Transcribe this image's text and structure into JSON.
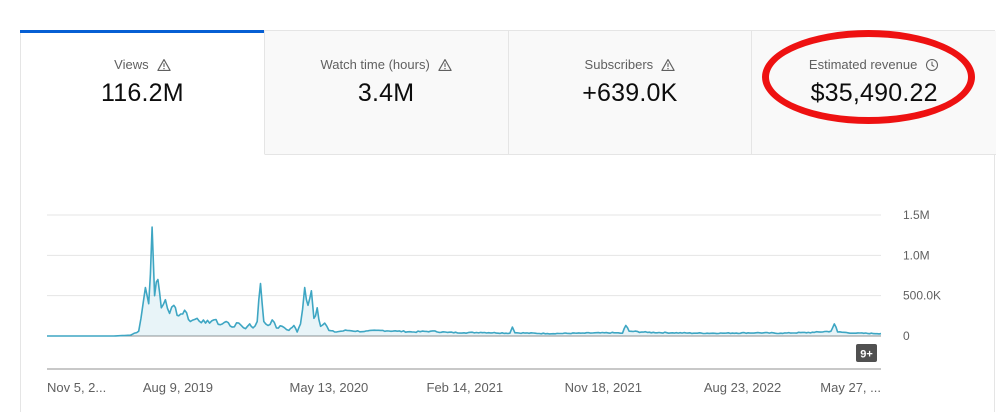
{
  "tabs": [
    {
      "label": "Views",
      "value": "116.2M",
      "icon": "warning-icon",
      "active": true
    },
    {
      "label": "Watch time (hours)",
      "value": "3.4M",
      "icon": "warning-icon",
      "active": false
    },
    {
      "label": "Subscribers",
      "value": "+639.0K",
      "icon": "warning-icon",
      "active": false
    },
    {
      "label": "Estimated revenue",
      "value": "$35,490.22",
      "icon": "clock-icon",
      "active": false
    }
  ],
  "colors": {
    "accent": "#065fd4",
    "series": "#3ea6c3",
    "highlight": "#ee1111"
  },
  "badge": "9+",
  "chart_data": {
    "type": "area",
    "title": "",
    "series_name": "Views",
    "xlabel": "",
    "ylabel": "",
    "ylim": [
      0,
      1500000
    ],
    "y_ticks": [
      {
        "value": 0,
        "label": "0"
      },
      {
        "value": 500000,
        "label": "500.0K"
      },
      {
        "value": 1000000,
        "label": "1.0M"
      },
      {
        "value": 1500000,
        "label": "1.5M"
      }
    ],
    "x_ticks": [
      "Nov 5, 2...",
      "Aug 9, 2019",
      "May 13, 2020",
      "Feb 14, 2021",
      "Nov 18, 2021",
      "Aug 23, 2022",
      "May 27, ..."
    ],
    "x_tick_positions": [
      0,
      0.157,
      0.338,
      0.501,
      0.667,
      0.834,
      1.0
    ],
    "points": [
      [
        0.0,
        0
      ],
      [
        0.08,
        0
      ],
      [
        0.1,
        10000
      ],
      [
        0.11,
        60000
      ],
      [
        0.118,
        600000
      ],
      [
        0.122,
        400000
      ],
      [
        0.126,
        1350000
      ],
      [
        0.129,
        500000
      ],
      [
        0.133,
        700000
      ],
      [
        0.137,
        350000
      ],
      [
        0.142,
        450000
      ],
      [
        0.147,
        280000
      ],
      [
        0.152,
        380000
      ],
      [
        0.158,
        250000
      ],
      [
        0.165,
        320000
      ],
      [
        0.172,
        180000
      ],
      [
        0.18,
        220000
      ],
      [
        0.19,
        160000
      ],
      [
        0.2,
        200000
      ],
      [
        0.208,
        140000
      ],
      [
        0.215,
        180000
      ],
      [
        0.222,
        110000
      ],
      [
        0.23,
        160000
      ],
      [
        0.238,
        90000
      ],
      [
        0.243,
        150000
      ],
      [
        0.247,
        100000
      ],
      [
        0.252,
        180000
      ],
      [
        0.256,
        650000
      ],
      [
        0.26,
        180000
      ],
      [
        0.265,
        130000
      ],
      [
        0.27,
        200000
      ],
      [
        0.275,
        100000
      ],
      [
        0.282,
        120000
      ],
      [
        0.29,
        70000
      ],
      [
        0.296,
        130000
      ],
      [
        0.3,
        50000
      ],
      [
        0.304,
        150000
      ],
      [
        0.309,
        600000
      ],
      [
        0.313,
        380000
      ],
      [
        0.317,
        560000
      ],
      [
        0.32,
        220000
      ],
      [
        0.324,
        350000
      ],
      [
        0.328,
        120000
      ],
      [
        0.333,
        160000
      ],
      [
        0.338,
        70000
      ],
      [
        0.345,
        50000
      ],
      [
        0.36,
        70000
      ],
      [
        0.38,
        55000
      ],
      [
        0.4,
        70000
      ],
      [
        0.42,
        60000
      ],
      [
        0.44,
        50000
      ],
      [
        0.46,
        60000
      ],
      [
        0.48,
        45000
      ],
      [
        0.5,
        40000
      ],
      [
        0.52,
        45000
      ],
      [
        0.555,
        35000
      ],
      [
        0.558,
        110000
      ],
      [
        0.561,
        40000
      ],
      [
        0.6,
        30000
      ],
      [
        0.64,
        35000
      ],
      [
        0.68,
        40000
      ],
      [
        0.69,
        35000
      ],
      [
        0.694,
        130000
      ],
      [
        0.698,
        60000
      ],
      [
        0.72,
        45000
      ],
      [
        0.75,
        40000
      ],
      [
        0.78,
        35000
      ],
      [
        0.81,
        35000
      ],
      [
        0.85,
        40000
      ],
      [
        0.88,
        35000
      ],
      [
        0.92,
        45000
      ],
      [
        0.94,
        60000
      ],
      [
        0.944,
        150000
      ],
      [
        0.948,
        50000
      ],
      [
        0.97,
        35000
      ],
      [
        1.0,
        30000
      ]
    ]
  }
}
